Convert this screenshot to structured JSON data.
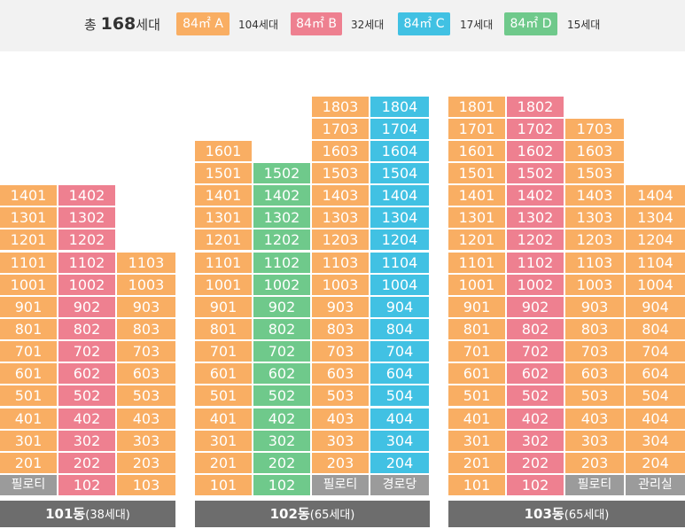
{
  "colors": {
    "A": "#f9ae63",
    "B": "#ee8090",
    "C": "#41c1e3",
    "D": "#6fc98b",
    "facility": "#9b9b9b",
    "label_bg": "#6d6d6d"
  },
  "legend": {
    "total_prefix": "총",
    "total_count": "168",
    "total_suffix": "세대",
    "types": [
      {
        "key": "A",
        "label": "84㎡ A",
        "count": "104세대"
      },
      {
        "key": "B",
        "label": "84㎡ B",
        "count": "32세대"
      },
      {
        "key": "C",
        "label": "84㎡ C",
        "count": "17세대"
      },
      {
        "key": "D",
        "label": "84㎡ D",
        "count": "15세대"
      }
    ]
  },
  "chart_data": {
    "type": "table",
    "title": "총 168세대",
    "buildings": [
      {
        "name": "101동",
        "households": "(38세대)",
        "lines": [
          {
            "type": "A",
            "top_floor": 14,
            "ground": {
              "kind": "facility",
              "label": "필로티"
            }
          },
          {
            "type": "B",
            "top_floor": 14,
            "ground": {
              "kind": "unit",
              "label": "102"
            }
          },
          {
            "type": "A",
            "top_floor": 11,
            "ground": {
              "kind": "unit",
              "label": "103"
            }
          }
        ]
      },
      {
        "name": "102동",
        "households": "(65세대)",
        "lines": [
          {
            "type": "A",
            "top_floor": 16,
            "ground": {
              "kind": "unit",
              "label": "101"
            }
          },
          {
            "type": "D",
            "top_floor": 15,
            "ground": {
              "kind": "unit",
              "label": "102"
            }
          },
          {
            "type": "A",
            "top_floor": 18,
            "ground": {
              "kind": "facility",
              "label": "필로티"
            }
          },
          {
            "type": "C",
            "top_floor": 18,
            "ground": {
              "kind": "facility",
              "label": "경로당"
            }
          }
        ]
      },
      {
        "name": "103동",
        "households": "(65세대)",
        "lines": [
          {
            "type": "A",
            "top_floor": 18,
            "ground": {
              "kind": "unit",
              "label": "101"
            }
          },
          {
            "type": "B",
            "top_floor": 18,
            "ground": {
              "kind": "unit",
              "label": "102"
            }
          },
          {
            "type": "A",
            "top_floor": 17,
            "ground": {
              "kind": "facility",
              "label": "필로티"
            }
          },
          {
            "type": "A",
            "top_floor": 14,
            "ground": {
              "kind": "facility",
              "label": "관리실"
            }
          }
        ]
      }
    ]
  }
}
